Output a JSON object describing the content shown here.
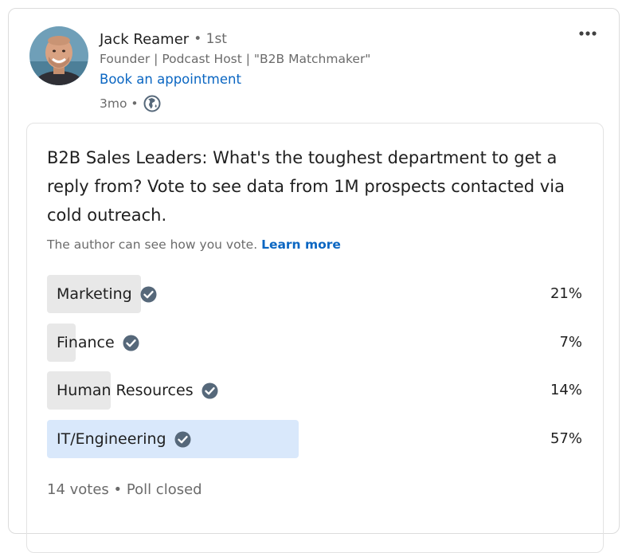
{
  "post": {
    "author": {
      "name": "Jack Reamer",
      "connection": "• 1st",
      "headline": "Founder | Podcast Host | \"B2B Matchmaker\"",
      "cta_link": "Book an appointment",
      "timestamp": "3mo •"
    },
    "menu_icon": "more-horizontal-icon",
    "visibility_icon": "globe-icon"
  },
  "poll": {
    "question": "B2B Sales Leaders: What's the toughest department to get a reply from? Vote to see data from 1M prospects contacted via cold outreach.",
    "visibility_note": "The author can see how you vote.",
    "learn_more": "Learn more",
    "options": [
      {
        "label": "Marketing",
        "percent_label": "21%",
        "percent": 21,
        "selected": false
      },
      {
        "label": "Finance",
        "percent_label": "7%",
        "percent": 7,
        "selected": false
      },
      {
        "label": "Human Resources",
        "percent_label": "14%",
        "percent": 14,
        "selected": false
      },
      {
        "label": "IT/Engineering",
        "percent_label": "57%",
        "percent": 57,
        "selected": true
      }
    ],
    "footer": "14 votes • Poll closed",
    "colors": {
      "bar": "#e8e8e8",
      "bar_selected": "#d9e8fb",
      "check": "#56687a",
      "link": "#0a66c2"
    }
  }
}
